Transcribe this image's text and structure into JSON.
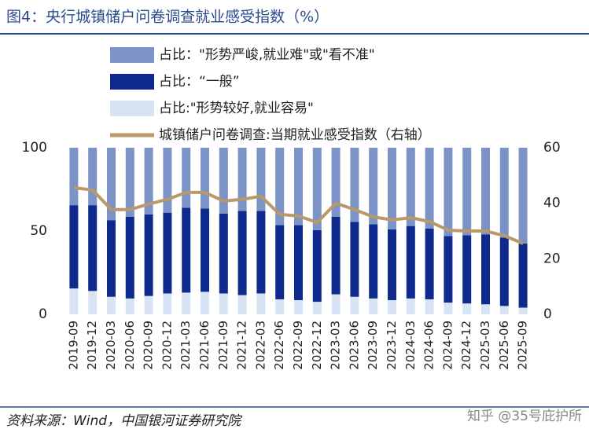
{
  "chart_data": {
    "type": "stacked_bar_line",
    "title": "图4：央行城镇储户问卷调查就业感受指数（%）",
    "source": "资料来源：Wind，中国银河证券研究院",
    "watermark": "知乎 @35号庇护所",
    "categories": [
      "2019-09",
      "2019-12",
      "2020-03",
      "2020-06",
      "2020-09",
      "2020-12",
      "2021-03",
      "2021-06",
      "2021-09",
      "2021-12",
      "2022-03",
      "2022-06",
      "2022-09",
      "2022-12",
      "2023-03",
      "2023-06",
      "2023-09",
      "2023-12",
      "2024-03",
      "2024-06",
      "2024-09",
      "2024-12",
      "2025-03",
      "2025-06",
      "2025-09"
    ],
    "series": [
      {
        "name": "占比：\"形势严峻,就业难\"或\"看不准\"",
        "color": "#7b93c6",
        "values": [
          34.5,
          34.5,
          43.5,
          41.5,
          40,
          39,
          36,
          36.5,
          39.5,
          38,
          38,
          46.5,
          46.5,
          49.5,
          41.5,
          44.5,
          46,
          49,
          47,
          48.5,
          53,
          52.5,
          52,
          54,
          57.5
        ]
      },
      {
        "name": "占比：“一般”",
        "color": "#0d2a8c",
        "values": [
          50,
          51.5,
          46,
          49,
          49,
          48.5,
          51,
          50,
          48,
          50.5,
          49.5,
          44.5,
          45,
          43,
          46.5,
          45,
          44.5,
          42.5,
          43.5,
          42.5,
          40,
          41,
          42,
          41,
          38.5
        ]
      },
      {
        "name": "占比:\"形势较好,就业容易\"",
        "color": "#d8e3f3",
        "values": [
          15.5,
          14,
          10.5,
          9.5,
          11,
          12.5,
          13,
          13.5,
          12.5,
          11.5,
          12.5,
          9,
          8.5,
          7.5,
          12,
          10.5,
          9.5,
          8.5,
          9.5,
          9,
          7,
          6.5,
          6,
          5,
          4
        ]
      },
      {
        "name": "城镇储户问卷调查:当期就业感受指数（右轴）",
        "color": "#b9996a",
        "axis": "y2",
        "values": [
          45.6,
          44.8,
          37.7,
          37.7,
          39.7,
          41.4,
          43.9,
          43.9,
          40.8,
          41.4,
          42.5,
          36,
          35.4,
          33.1,
          40,
          37.7,
          35.1,
          34,
          34.8,
          33.4,
          30.3,
          30,
          30,
          28.3,
          25.5
        ]
      }
    ],
    "ylim": [
      0,
      100
    ],
    "yticks": [
      0,
      50,
      100
    ],
    "y2lim": [
      0,
      60
    ],
    "y2ticks": [
      0,
      20,
      40,
      60
    ]
  }
}
